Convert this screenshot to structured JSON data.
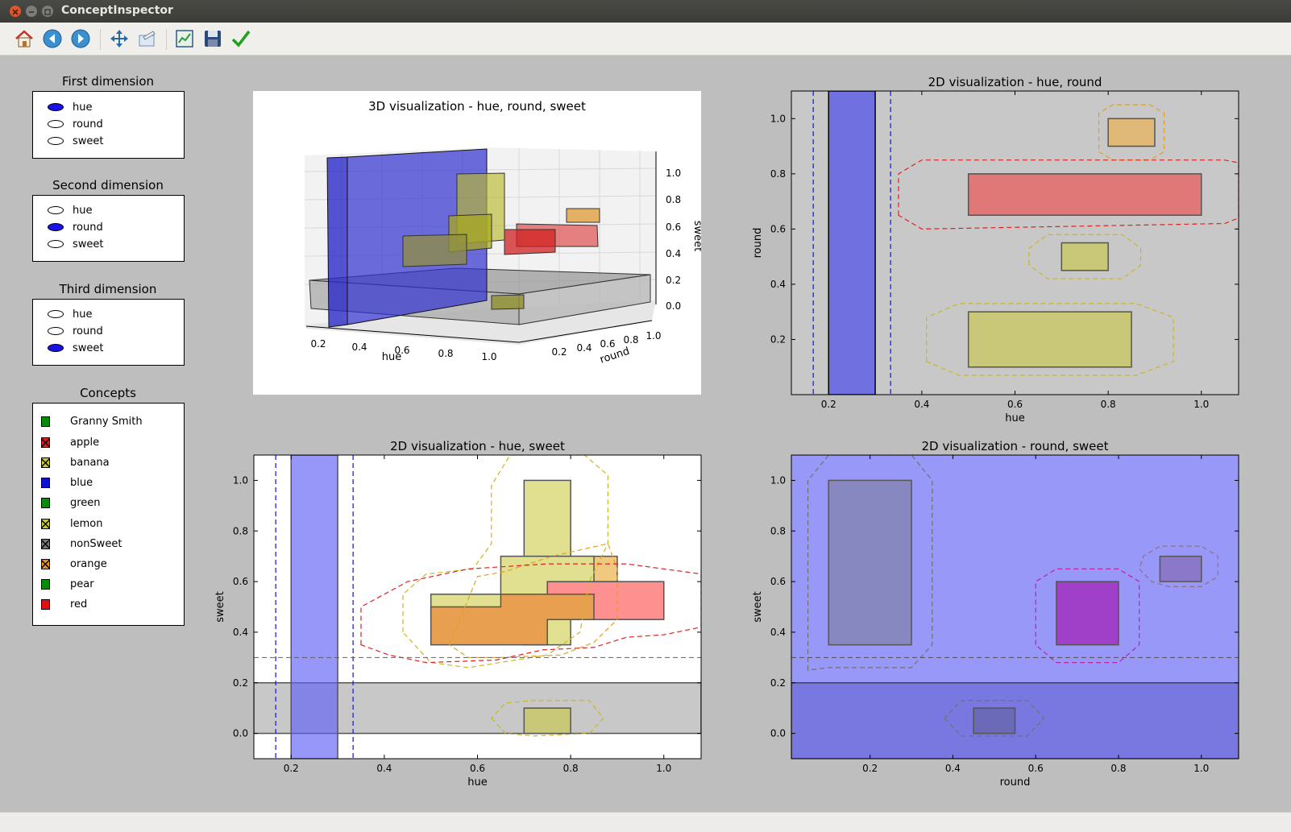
{
  "window": {
    "title": "ConceptInspector"
  },
  "toolbar": {
    "icons": [
      "home-icon",
      "back-icon",
      "forward-icon",
      "pan-icon",
      "zoom-icon",
      "subplots-icon",
      "save-icon",
      "check-icon"
    ]
  },
  "first_dimension": {
    "title": "First dimension",
    "options": [
      "hue",
      "round",
      "sweet"
    ],
    "selected": "hue"
  },
  "second_dimension": {
    "title": "Second dimension",
    "options": [
      "hue",
      "round",
      "sweet"
    ],
    "selected": "round"
  },
  "third_dimension": {
    "title": "Third dimension",
    "options": [
      "hue",
      "round",
      "sweet"
    ],
    "selected": "sweet"
  },
  "concepts": {
    "title": "Concepts",
    "items": [
      {
        "label": "Granny Smith",
        "color": "#0a8a0a",
        "hatched": false
      },
      {
        "label": "apple",
        "color": "#d62020",
        "hatched": true
      },
      {
        "label": "banana",
        "color": "#c8c830",
        "hatched": true
      },
      {
        "label": "blue",
        "color": "#1010d0",
        "hatched": false
      },
      {
        "label": "green",
        "color": "#0a8a0a",
        "hatched": false
      },
      {
        "label": "lemon",
        "color": "#c8c830",
        "hatched": true
      },
      {
        "label": "nonSweet",
        "color": "#7a7a7a",
        "hatched": true
      },
      {
        "label": "orange",
        "color": "#e89020",
        "hatched": true
      },
      {
        "label": "pear",
        "color": "#0a8a0a",
        "hatched": false
      },
      {
        "label": "red",
        "color": "#e01010",
        "hatched": false
      }
    ]
  },
  "chart_data": [
    {
      "id": "3d",
      "type": "3d-boxes",
      "title": "3D visualization - hue, round, sweet",
      "xlabel": "hue",
      "ylabel": "round",
      "zlabel": "sweet",
      "xticks": [
        "0.2",
        "0.4",
        "0.6",
        "0.8",
        "1.0"
      ],
      "yticks": [
        "0.2",
        "0.4",
        "0.6",
        "0.8",
        "1.0"
      ],
      "zticks": [
        "0.0",
        "0.2",
        "0.4",
        "0.6",
        "0.8",
        "1.0"
      ]
    },
    {
      "id": "hue-round",
      "type": "boxes",
      "title": "2D visualization - hue, round",
      "xlabel": "hue",
      "ylabel": "round",
      "xlim": [
        0.12,
        1.08
      ],
      "ylim": [
        0.0,
        1.1
      ],
      "xticks": [
        0.2,
        0.4,
        0.6,
        0.8,
        1.0
      ],
      "yticks": [
        0.2,
        0.4,
        0.6,
        0.8,
        1.0
      ],
      "background": "#c8c8c8",
      "vlines": [
        {
          "x": 0.167,
          "color": "#2020f0"
        },
        {
          "x": 0.333,
          "color": "#2020f0"
        }
      ],
      "rects": [
        {
          "x0": 0.2,
          "x1": 0.3,
          "y0": 0.0,
          "y1": 1.1,
          "fill": "#7070e0",
          "stroke": "#000"
        },
        {
          "x0": 0.8,
          "x1": 0.9,
          "y0": 0.9,
          "y1": 1.0,
          "fill": "#e0b878",
          "stroke": "#555"
        },
        {
          "x0": 0.5,
          "x1": 1.0,
          "y0": 0.65,
          "y1": 0.8,
          "fill": "#e07878",
          "stroke": "#555"
        },
        {
          "x0": 0.7,
          "x1": 0.8,
          "y0": 0.45,
          "y1": 0.55,
          "fill": "#c8c878",
          "stroke": "#555"
        },
        {
          "x0": 0.5,
          "x1": 0.85,
          "y0": 0.1,
          "y1": 0.3,
          "fill": "#c8c878",
          "stroke": "#555"
        }
      ],
      "hulls": [
        {
          "points": [
            [
              0.78,
              0.88
            ],
            [
              0.81,
              0.85
            ],
            [
              0.89,
              0.85
            ],
            [
              0.92,
              0.88
            ],
            [
              0.92,
              1.02
            ],
            [
              0.89,
              1.05
            ],
            [
              0.81,
              1.05
            ],
            [
              0.78,
              1.02
            ]
          ],
          "color": "#e0a020"
        },
        {
          "points": [
            [
              0.35,
              0.65
            ],
            [
              0.35,
              0.8
            ],
            [
              0.4,
              0.85
            ],
            [
              1.05,
              0.85
            ],
            [
              1.08,
              0.84
            ],
            [
              1.08,
              0.64
            ],
            [
              1.05,
              0.62
            ],
            [
              0.4,
              0.6
            ]
          ],
          "color": "#e02020"
        },
        {
          "points": [
            [
              0.63,
              0.47
            ],
            [
              0.63,
              0.53
            ],
            [
              0.67,
              0.58
            ],
            [
              0.83,
              0.58
            ],
            [
              0.87,
              0.53
            ],
            [
              0.87,
              0.47
            ],
            [
              0.83,
              0.42
            ],
            [
              0.67,
              0.42
            ]
          ],
          "color": "#c8b820"
        },
        {
          "points": [
            [
              0.41,
              0.12
            ],
            [
              0.41,
              0.28
            ],
            [
              0.48,
              0.33
            ],
            [
              0.86,
              0.33
            ],
            [
              0.94,
              0.28
            ],
            [
              0.94,
              0.12
            ],
            [
              0.86,
              0.07
            ],
            [
              0.48,
              0.07
            ]
          ],
          "color": "#c8b820"
        }
      ]
    },
    {
      "id": "hue-sweet",
      "type": "boxes",
      "title": "2D visualization - hue, sweet",
      "xlabel": "hue",
      "ylabel": "sweet",
      "xlim": [
        0.12,
        1.08
      ],
      "ylim": [
        -0.1,
        1.1
      ],
      "xticks": [
        0.2,
        0.4,
        0.6,
        0.8,
        1.0
      ],
      "yticks": [
        0.0,
        0.2,
        0.4,
        0.6,
        0.8,
        1.0
      ],
      "background": "#ffffff",
      "vlines": [
        {
          "x": 0.167,
          "color": "#2020f0"
        },
        {
          "x": 0.333,
          "color": "#2020f0"
        }
      ],
      "hlines": [
        {
          "y": 0.3,
          "color": "#606060"
        }
      ],
      "rects": [
        {
          "x0": 0.12,
          "x1": 1.08,
          "y0": 0.0,
          "y1": 0.2,
          "fill": "#c8c8c8",
          "stroke": "#555"
        },
        {
          "x0": 0.2,
          "x1": 0.3,
          "y0": -0.1,
          "y1": 1.1,
          "fill": "#6060f8",
          "stroke": "#555",
          "opacity": 0.65
        },
        {
          "x0": 0.7,
          "x1": 0.8,
          "y0": 0.0,
          "y1": 0.1,
          "fill": "#c8c878",
          "stroke": "#555"
        },
        {
          "x0": 0.7,
          "x1": 0.8,
          "y0": 0.35,
          "y1": 1.0,
          "fill": "#e0e090",
          "stroke": "#555"
        },
        {
          "x0": 0.5,
          "x1": 0.85,
          "y0": 0.45,
          "y1": 0.55,
          "fill": "#e0e090",
          "stroke": "#555"
        },
        {
          "x0": 0.75,
          "x1": 1.0,
          "y0": 0.45,
          "y1": 0.6,
          "fill": "#ff9090",
          "stroke": "#555"
        },
        {
          "x0": 0.8,
          "x1": 0.9,
          "y0": 0.6,
          "y1": 0.7,
          "fill": "#f0c880",
          "stroke": "#555"
        }
      ],
      "polys": [
        {
          "points": [
            [
              0.5,
              0.35
            ],
            [
              0.5,
              0.5
            ],
            [
              0.65,
              0.5
            ],
            [
              0.65,
              0.55
            ],
            [
              0.85,
              0.55
            ],
            [
              0.85,
              0.45
            ],
            [
              0.75,
              0.45
            ],
            [
              0.75,
              0.35
            ]
          ],
          "fill": "#e8a050",
          "stroke": "#555"
        },
        {
          "points": [
            [
              0.65,
              0.55
            ],
            [
              0.65,
              0.7
            ],
            [
              0.85,
              0.7
            ],
            [
              0.85,
              0.6
            ],
            [
              0.75,
              0.6
            ],
            [
              0.75,
              0.55
            ]
          ],
          "fill": "#e0e090",
          "stroke": "#555"
        }
      ],
      "hulls": [
        {
          "points": [
            [
              0.63,
              0.06
            ],
            [
              0.66,
              0.0
            ],
            [
              0.72,
              -0.01
            ],
            [
              0.84,
              0.0
            ],
            [
              0.87,
              0.06
            ],
            [
              0.84,
              0.13
            ],
            [
              0.72,
              0.13
            ],
            [
              0.66,
              0.12
            ]
          ],
          "color": "#c8b820"
        },
        {
          "points": [
            [
              0.44,
              0.4
            ],
            [
              0.44,
              0.55
            ],
            [
              0.49,
              0.63
            ],
            [
              0.59,
              0.65
            ],
            [
              0.63,
              0.75
            ],
            [
              0.63,
              0.98
            ],
            [
              0.67,
              1.1
            ],
            [
              0.83,
              1.1
            ],
            [
              0.88,
              1.02
            ],
            [
              0.88,
              0.75
            ],
            [
              0.84,
              0.6
            ],
            [
              0.82,
              0.4
            ],
            [
              0.75,
              0.31
            ],
            [
              0.58,
              0.26
            ],
            [
              0.5,
              0.28
            ]
          ],
          "color": "#c8b820"
        },
        {
          "points": [
            [
              0.54,
              0.35
            ],
            [
              0.6,
              0.62
            ],
            [
              0.66,
              0.64
            ],
            [
              0.76,
              0.7
            ],
            [
              0.88,
              0.75
            ],
            [
              0.9,
              0.65
            ],
            [
              0.9,
              0.45
            ],
            [
              0.85,
              0.36
            ],
            [
              0.78,
              0.31
            ],
            [
              0.65,
              0.3
            ],
            [
              0.58,
              0.3
            ]
          ],
          "color": "#e0a020"
        },
        {
          "points": [
            [
              0.35,
              0.35
            ],
            [
              0.35,
              0.5
            ],
            [
              0.45,
              0.6
            ],
            [
              0.58,
              0.65
            ],
            [
              0.75,
              0.67
            ],
            [
              0.92,
              0.67
            ],
            [
              1.08,
              0.63
            ],
            [
              1.08,
              0.42
            ],
            [
              1.0,
              0.39
            ],
            [
              0.92,
              0.38
            ],
            [
              0.85,
              0.34
            ],
            [
              0.74,
              0.33
            ],
            [
              0.64,
              0.29
            ],
            [
              0.49,
              0.28
            ],
            [
              0.41,
              0.31
            ]
          ],
          "color": "#e02020"
        }
      ]
    },
    {
      "id": "round-sweet",
      "type": "boxes",
      "title": "2D visualization - round, sweet",
      "xlabel": "round",
      "ylabel": "sweet",
      "xlim": [
        0.01,
        1.09
      ],
      "ylim": [
        -0.1,
        1.1
      ],
      "xticks": [
        0.2,
        0.4,
        0.6,
        0.8,
        1.0
      ],
      "yticks": [
        0.0,
        0.2,
        0.4,
        0.6,
        0.8,
        1.0
      ],
      "background": "#9898f8",
      "hlines": [
        {
          "y": 0.3,
          "color": "#505050"
        }
      ],
      "rects": [
        {
          "x0": 0.01,
          "x1": 1.09,
          "y0": -0.1,
          "y1": 0.2,
          "fill": "#7878e0",
          "stroke": "#444"
        },
        {
          "x0": 0.1,
          "x1": 0.3,
          "y0": 0.35,
          "y1": 1.0,
          "fill": "#8888c0",
          "stroke": "#555"
        },
        {
          "x0": 0.45,
          "x1": 0.55,
          "y0": 0.0,
          "y1": 0.1,
          "fill": "#6a6ab8",
          "stroke": "#555"
        },
        {
          "x0": 0.65,
          "x1": 0.8,
          "y0": 0.35,
          "y1": 0.6,
          "fill": "#a040c8",
          "stroke": "#555"
        },
        {
          "x0": 0.9,
          "x1": 1.0,
          "y0": 0.6,
          "y1": 0.7,
          "fill": "#8c78c8",
          "stroke": "#555"
        }
      ],
      "hulls": [
        {
          "points": [
            [
              0.05,
              0.25
            ],
            [
              0.05,
              1.0
            ],
            [
              0.1,
              1.1
            ],
            [
              0.3,
              1.1
            ],
            [
              0.35,
              1.0
            ],
            [
              0.35,
              0.35
            ],
            [
              0.3,
              0.26
            ],
            [
              0.1,
              0.26
            ]
          ],
          "color": "#707070"
        },
        {
          "points": [
            [
              0.38,
              0.06
            ],
            [
              0.42,
              -0.01
            ],
            [
              0.58,
              -0.01
            ],
            [
              0.62,
              0.06
            ],
            [
              0.58,
              0.13
            ],
            [
              0.42,
              0.13
            ]
          ],
          "color": "#707070"
        },
        {
          "points": [
            [
              0.6,
              0.35
            ],
            [
              0.6,
              0.6
            ],
            [
              0.65,
              0.65
            ],
            [
              0.8,
              0.65
            ],
            [
              0.85,
              0.6
            ],
            [
              0.85,
              0.35
            ],
            [
              0.8,
              0.28
            ],
            [
              0.65,
              0.28
            ]
          ],
          "color": "#c020a0"
        },
        {
          "points": [
            [
              0.85,
              0.65
            ],
            [
              0.88,
              0.6
            ],
            [
              0.92,
              0.58
            ],
            [
              1.0,
              0.58
            ],
            [
              1.04,
              0.62
            ],
            [
              1.04,
              0.7
            ],
            [
              1.0,
              0.74
            ],
            [
              0.9,
              0.74
            ],
            [
              0.86,
              0.7
            ]
          ],
          "color": "#907080"
        }
      ]
    }
  ]
}
